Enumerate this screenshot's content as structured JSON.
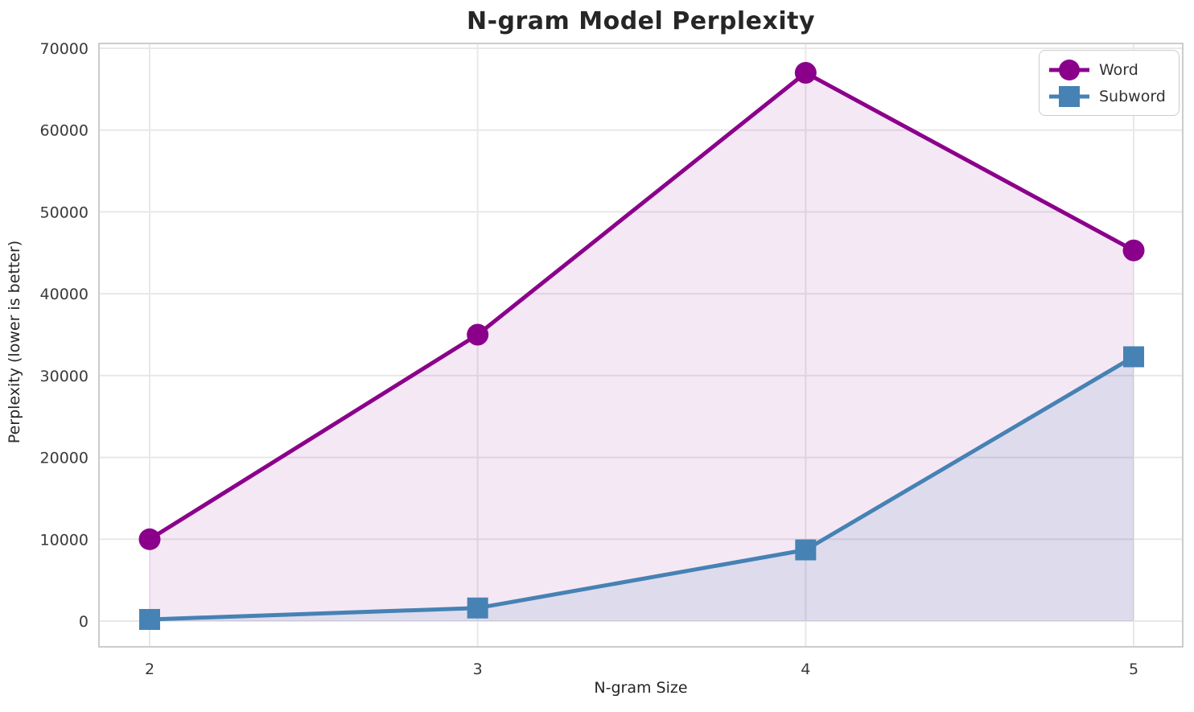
{
  "chart_data": {
    "type": "line",
    "title": "N-gram Model Perplexity",
    "xlabel": "N-gram Size",
    "ylabel": "Perplexity (lower is better)",
    "x": [
      2,
      3,
      4,
      5
    ],
    "series": [
      {
        "name": "Word",
        "values": [
          10000,
          35000,
          67000,
          45300
        ],
        "color": "#8B008B",
        "marker": "circle",
        "fill_opacity": 0.09
      },
      {
        "name": "Subword",
        "values": [
          200,
          1600,
          8700,
          32300
        ],
        "color": "#4682B4",
        "marker": "square",
        "fill_opacity": 0.13
      }
    ],
    "xticks": [
      2,
      3,
      4,
      5
    ],
    "yticks": [
      0,
      10000,
      20000,
      30000,
      40000,
      50000,
      60000,
      70000
    ],
    "ylim": [
      0,
      70000
    ],
    "grid": true,
    "area_fill": true,
    "legend_position": "upper right",
    "colors": {
      "grid": "#e8e8e8",
      "spine": "#cccccc",
      "tick_text": "#3a3a3a",
      "title_text": "#262626",
      "background": "#ffffff"
    }
  }
}
